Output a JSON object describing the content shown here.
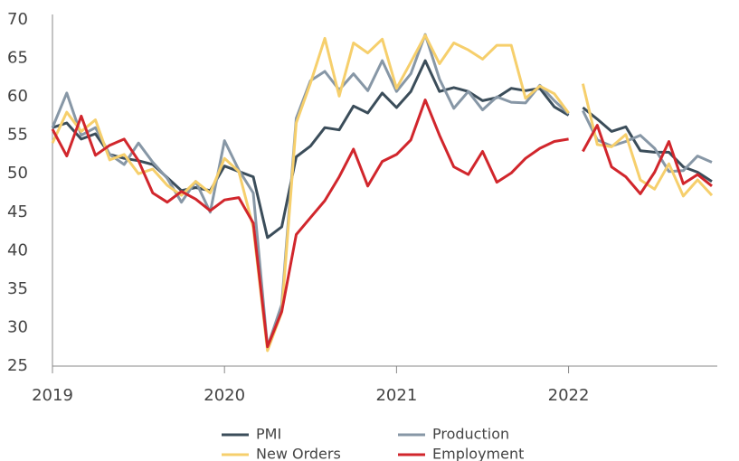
{
  "chart_data": {
    "type": "line",
    "x": [
      2019,
      2019.083,
      2019.167,
      2019.25,
      2019.333,
      2019.417,
      2019.5,
      2019.583,
      2019.667,
      2019.75,
      2019.833,
      2019.917,
      2020,
      2020.083,
      2020.167,
      2020.25,
      2020.333,
      2020.417,
      2020.5,
      2020.583,
      2020.667,
      2020.75,
      2020.833,
      2020.917,
      2021,
      2021.083,
      2021.167,
      2021.25,
      2021.333,
      2021.417,
      2021.5,
      2021.583,
      2021.667,
      2021.75,
      2021.833,
      2021.917,
      2022,
      null,
      2022.083,
      2022.167,
      2022.25,
      2022.333,
      2022.417,
      2022.5,
      2022.583,
      2022.667,
      2022.75,
      2022.833
    ],
    "series": [
      {
        "name": "PMI",
        "color": "#3b4d5a",
        "values": [
          56,
          56.6,
          54.5,
          55.2,
          52.5,
          52.0,
          51.7,
          51.2,
          49.5,
          47.8,
          48.2,
          47.8,
          51.0,
          50.3,
          49.6,
          41.7,
          43.1,
          52.2,
          53.6,
          56.0,
          55.7,
          58.8,
          57.9,
          60.5,
          58.6,
          60.7,
          64.7,
          60.7,
          61.2,
          60.7,
          59.5,
          59.9,
          61.1,
          60.8,
          61.1,
          58.7,
          57.6,
          null,
          58.6,
          57.1,
          55.5,
          56.1,
          53.0,
          52.8,
          52.8,
          50.9,
          50.2,
          49.0
        ]
      },
      {
        "name": "Production",
        "color": "#8797a6",
        "values": [
          56,
          60.5,
          55,
          56,
          52.5,
          51.2,
          54,
          51.5,
          49.4,
          46.3,
          49,
          45,
          54.3,
          50.5,
          47.5,
          27.5,
          33,
          57.2,
          62.1,
          63.3,
          60.9,
          63,
          60.8,
          64.7,
          60.7,
          63,
          68.1,
          62.3,
          58.5,
          60.7,
          58.3,
          60,
          59.3,
          59.2,
          61.5,
          59.5,
          57.8,
          null,
          58.2,
          54.4,
          53.6,
          54.2,
          55,
          53.3,
          50.3,
          50.4,
          52.3,
          51.5
        ]
      },
      {
        "name": "New Orders",
        "color": "#f6cf6c",
        "values": [
          54,
          58,
          55.5,
          57,
          51.8,
          52.5,
          50,
          50.6,
          48.5,
          47.2,
          49,
          47.5,
          52,
          50.3,
          43,
          27,
          32,
          56.6,
          61.8,
          67.6,
          60.1,
          67,
          65.7,
          67.5,
          61.1,
          64.5,
          68,
          64.3,
          67,
          66.1,
          64.9,
          66.7,
          66.7,
          59.8,
          61.4,
          60.4,
          57.9,
          null,
          61.7,
          53.8,
          53.5,
          55.1,
          49.2,
          48,
          51.3,
          47.1,
          49.2,
          47.2
        ]
      },
      {
        "name": "Employment",
        "color": "#d1262c",
        "values": [
          55.8,
          52.3,
          57.5,
          52.4,
          53.7,
          54.5,
          51.7,
          47.5,
          46.3,
          47.7,
          46.7,
          45.2,
          46.6,
          46.9,
          43.6,
          27.5,
          32.1,
          42.1,
          44.3,
          46.5,
          49.6,
          53.2,
          48.4,
          51.6,
          52.5,
          54.4,
          59.6,
          55,
          50.9,
          49.9,
          52.9,
          48.9,
          50.1,
          52,
          53.3,
          54.2,
          54.5,
          null,
          52.9,
          56.3,
          50.9,
          49.6,
          47.4,
          50.2,
          54.2,
          48.7,
          49.9,
          48.4
        ]
      }
    ],
    "xlim": [
      2019,
      2022.833
    ],
    "xticks": [
      2019,
      2020,
      2021,
      2022
    ],
    "ylim": [
      25,
      70
    ],
    "yticks": [
      25,
      30,
      35,
      40,
      45,
      50,
      55,
      60,
      65,
      70
    ],
    "grid": false,
    "legend": "bottom"
  }
}
